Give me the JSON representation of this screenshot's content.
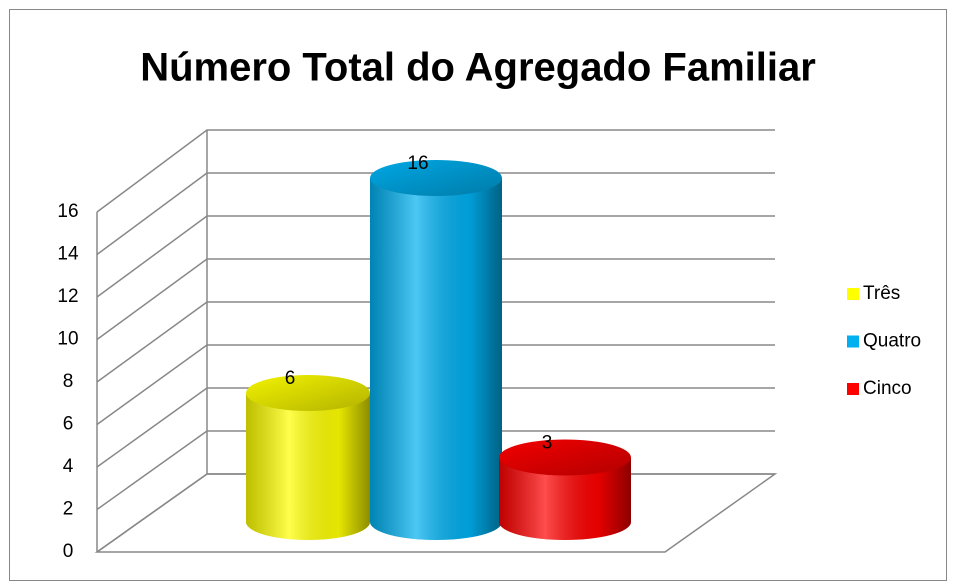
{
  "chart_data": {
    "type": "bar3d",
    "title": "Número Total do Agregado Familiar",
    "series": [
      {
        "name": "Três",
        "color": "#ffff00",
        "values": [
          6
        ]
      },
      {
        "name": "Quatro",
        "color": "#00b0f0",
        "values": [
          16
        ]
      },
      {
        "name": "Cinco",
        "color": "#ff0000",
        "values": [
          3
        ]
      }
    ],
    "ylim": [
      0,
      16
    ],
    "yticks": [
      0,
      2,
      4,
      6,
      8,
      10,
      12,
      14,
      16
    ],
    "grid": true,
    "legend": "right"
  }
}
